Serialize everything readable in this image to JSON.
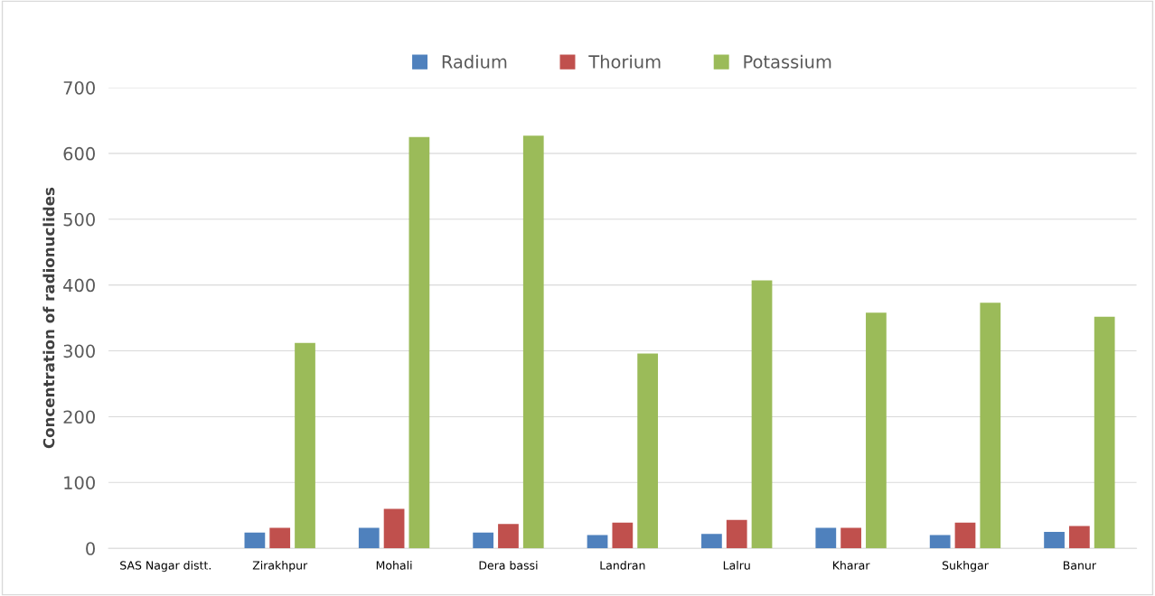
{
  "chart_data": {
    "type": "bar",
    "ylabel": "Concentration of radionuclides",
    "categories": [
      "SAS Nagar distt.",
      "Zirakhpur",
      "Mohali",
      "Dera bassi",
      "Landran",
      "Lalru",
      "Kharar",
      "Sukhgar",
      "Banur"
    ],
    "series": [
      {
        "name": "Radium",
        "color": "#4f81bd",
        "values": [
          null,
          24,
          31,
          24,
          20,
          22,
          31,
          20,
          25
        ]
      },
      {
        "name": "Thorium",
        "color": "#c0504d",
        "values": [
          null,
          31,
          60,
          37,
          39,
          43,
          31,
          39,
          34
        ]
      },
      {
        "name": "Potassium",
        "color": "#9bbb59",
        "values": [
          null,
          312,
          625,
          627,
          296,
          407,
          358,
          373,
          352
        ]
      }
    ],
    "ylim": [
      0,
      700
    ],
    "yticks": [
      0,
      100,
      200,
      300,
      400,
      500,
      600,
      700
    ],
    "grid": "y",
    "legend": "top"
  }
}
